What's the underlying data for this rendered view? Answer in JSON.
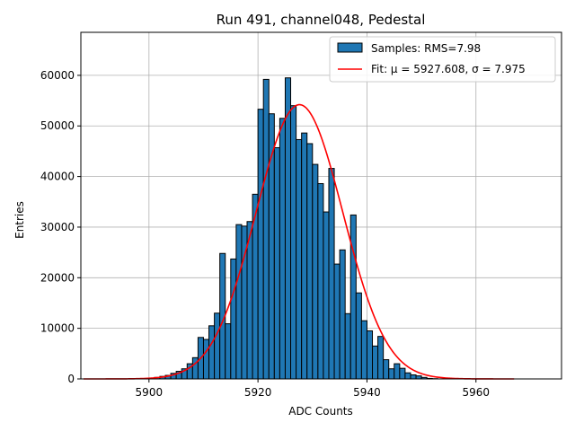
{
  "chart_data": {
    "type": "bar",
    "title": "Run 491, channel048, Pedestal",
    "xlabel": "ADC Counts",
    "ylabel": "Entries",
    "xlim": [
      5887.5,
      5975.7
    ],
    "ylim": [
      0,
      68500
    ],
    "grid": true,
    "legend_position": "top-right",
    "xticks": [
      5900,
      5920,
      5940,
      5960
    ],
    "yticks": [
      0,
      10000,
      20000,
      30000,
      40000,
      50000,
      60000
    ],
    "ytick_labels": [
      "0",
      "10000",
      "20000",
      "30000",
      "40000",
      "50000",
      "60000"
    ],
    "bins": {
      "edges": [
        5900,
        5901,
        5902,
        5903,
        5904,
        5905,
        5906,
        5907,
        5908,
        5909,
        5910,
        5911,
        5912,
        5913,
        5914,
        5915,
        5916,
        5917,
        5918,
        5919,
        5920,
        5921,
        5922,
        5923,
        5924,
        5925,
        5926,
        5927,
        5928,
        5929,
        5930,
        5931,
        5932,
        5933,
        5934,
        5935,
        5936,
        5937,
        5938,
        5939,
        5940,
        5941,
        5942,
        5943,
        5944,
        5945,
        5946,
        5947,
        5948,
        5949,
        5950,
        5951,
        5952,
        5953
      ],
      "counts": [
        100,
        300,
        500,
        700,
        1100,
        1500,
        2000,
        3000,
        4200,
        8200,
        7800,
        10500,
        13000,
        24800,
        10900,
        23700,
        30500,
        30200,
        31100,
        36500,
        53300,
        59200,
        52400,
        45700,
        51500,
        59500,
        54000,
        47300,
        48600,
        46500,
        42400,
        38600,
        33000,
        41600,
        22700,
        25500,
        12900,
        32400,
        17000,
        11500,
        9500,
        6500,
        8400,
        3800,
        2000,
        3000,
        2100,
        1200,
        800,
        600,
        300,
        100,
        50
      ]
    },
    "series": [
      {
        "name": "Samples: RMS=7.98",
        "color": "#1f77b4",
        "edgecolor": "#000000"
      },
      {
        "name": "Fit: μ = 5927.608, σ = 7.975",
        "color": "#ff0000",
        "mu": 5927.608,
        "sigma": 7.975,
        "amplitude": 54200,
        "x_range": [
          5888,
          5967
        ]
      }
    ]
  }
}
